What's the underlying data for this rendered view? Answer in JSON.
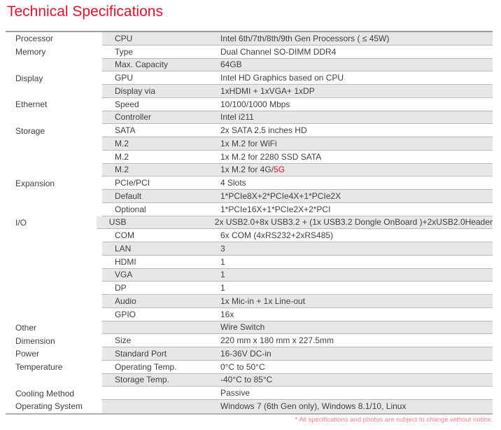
{
  "page": {
    "title": "Technical Specifications",
    "footnote": "* All specifications and photos are subject to change without notice."
  },
  "colors": {
    "title_red": "#e8112d",
    "accent_red": "#e8112d",
    "footnote_pink": "#f2808d",
    "row_shade_gray": "#e7e7e7",
    "text_gray": "#404040"
  },
  "table": {
    "columns": [
      "category",
      "item",
      "value"
    ],
    "rows": [
      {
        "category": "Processor",
        "item": "CPU",
        "value": "Intel 6th/7th/8th/9th Gen Processors ( ≤ 45W)"
      },
      {
        "category": "Memory",
        "item": "Type",
        "value": "Dual Channel SO-DIMM DDR4"
      },
      {
        "category": "",
        "item": "Max. Capacity",
        "value": "64GB"
      },
      {
        "category": "Display",
        "item": "GPU",
        "value": "Intel HD Graphics based on CPU"
      },
      {
        "category": "",
        "item": "Display via",
        "value": "1xHDMI + 1xVGA+ 1xDP"
      },
      {
        "category": "Ethernet",
        "item": "Speed",
        "value": "10/100/1000 Mbps"
      },
      {
        "category": "",
        "item": "Controller",
        "value": "Intel i211"
      },
      {
        "category": "Storage",
        "item": "SATA",
        "value": "2x SATA 2.5 inches HD"
      },
      {
        "category": "",
        "item": "M.2",
        "value": "1x M.2 for WiFi"
      },
      {
        "category": "",
        "item": "M.2",
        "value": "1x M.2 for 2280 SSD SATA"
      },
      {
        "category": "",
        "item": "M.2",
        "value": "1x M.2 for 4G/",
        "value_accent": "5G"
      },
      {
        "category": "Expansion",
        "item": "PCIe/PCI",
        "value": "4 Slots"
      },
      {
        "category": "",
        "item": "Default",
        "value": "1*PCIe8X+2*PCIe4X+1*PCIe2X"
      },
      {
        "category": "",
        "item": "Optional",
        "value": "1*PCIe16X+1*PCIe2X+2*PCI"
      },
      {
        "category": "I/O",
        "item": "USB",
        "value": "2x USB2.0+8x USB3.2 + (1x USB3.2 Dongle OnBoard )+2xUSB2.0Header"
      },
      {
        "category": "",
        "item": "COM",
        "value": "6x COM (4xRS232+2xRS485)"
      },
      {
        "category": "",
        "item": "LAN",
        "value": "3"
      },
      {
        "category": "",
        "item": "HDMI",
        "value": "1"
      },
      {
        "category": "",
        "item": "VGA",
        "value": "1"
      },
      {
        "category": "",
        "item": "DP",
        "value": "1"
      },
      {
        "category": "",
        "item": "Audio",
        "value": "1x Mic-in + 1x Line-out"
      },
      {
        "category": "",
        "item": "GPIO",
        "value": "16x"
      },
      {
        "category": "Other",
        "item": "",
        "value": "Wire Switch"
      },
      {
        "category": "Dimension",
        "item": "Size",
        "value": "220 mm x 180 mm x 227.5mm"
      },
      {
        "category": "Power",
        "item": "Standard Port",
        "value": "16-36V DC-in"
      },
      {
        "category": "Temperature",
        "item": "Operating Temp.",
        "value": "0°C to 50°C"
      },
      {
        "category": "",
        "item": "Storage Temp.",
        "value": "-40°C to 85°C"
      },
      {
        "category": "Cooling Method",
        "item": "",
        "value": "Passive"
      },
      {
        "category": "Operating System",
        "item": "",
        "value": "Windows 7 (6th Gen only), Windows 8.1/10, Linux"
      }
    ]
  }
}
